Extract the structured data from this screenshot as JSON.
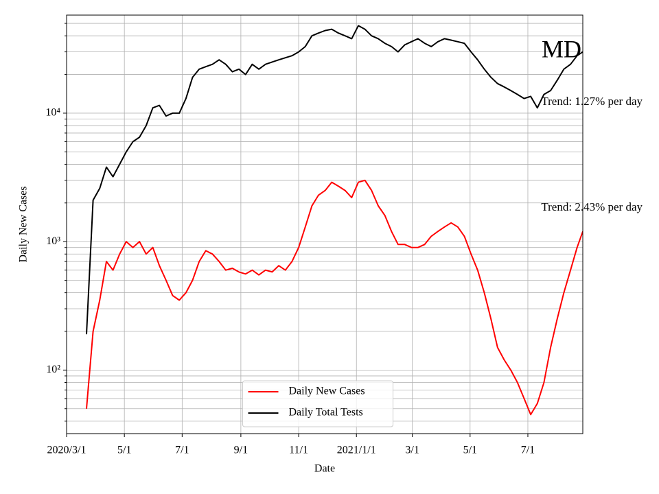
{
  "chart_data": {
    "type": "line",
    "xlabel": "Date",
    "ylabel": "Daily New Cases",
    "annotations": [
      "MD",
      "Trend: 1.27% per day",
      "Trend: 2.43% per day"
    ],
    "x": [
      "2020-03-01",
      "2020-03-08",
      "2020-03-15",
      "2020-03-22",
      "2020-03-29",
      "2020-04-05",
      "2020-04-12",
      "2020-04-19",
      "2020-04-26",
      "2020-05-03",
      "2020-05-10",
      "2020-05-17",
      "2020-05-24",
      "2020-05-31",
      "2020-06-07",
      "2020-06-14",
      "2020-06-21",
      "2020-06-28",
      "2020-07-05",
      "2020-07-12",
      "2020-07-19",
      "2020-07-26",
      "2020-08-02",
      "2020-08-09",
      "2020-08-16",
      "2020-08-23",
      "2020-08-30",
      "2020-09-06",
      "2020-09-13",
      "2020-09-20",
      "2020-09-27",
      "2020-10-04",
      "2020-10-11",
      "2020-10-18",
      "2020-10-25",
      "2020-11-01",
      "2020-11-08",
      "2020-11-15",
      "2020-11-22",
      "2020-11-29",
      "2020-12-06",
      "2020-12-13",
      "2020-12-20",
      "2020-12-27",
      "2021-01-03",
      "2021-01-10",
      "2021-01-17",
      "2021-01-24",
      "2021-01-31",
      "2021-02-07",
      "2021-02-14",
      "2021-02-21",
      "2021-02-28",
      "2021-03-07",
      "2021-03-14",
      "2021-03-21",
      "2021-03-28",
      "2021-04-04",
      "2021-04-11",
      "2021-04-18",
      "2021-04-25",
      "2021-05-02",
      "2021-05-09",
      "2021-05-16",
      "2021-05-23",
      "2021-05-30",
      "2021-06-06",
      "2021-06-13",
      "2021-06-20",
      "2021-06-27",
      "2021-07-04",
      "2021-07-11",
      "2021-07-18",
      "2021-07-25",
      "2021-08-01",
      "2021-08-08",
      "2021-08-15",
      "2021-08-22",
      "2021-08-28"
    ],
    "series": [
      {
        "name": "Daily New Cases",
        "color": "#ff0000",
        "values": [
          null,
          null,
          null,
          50,
          200,
          350,
          700,
          600,
          800,
          1000,
          900,
          1000,
          800,
          900,
          650,
          500,
          380,
          350,
          400,
          500,
          700,
          850,
          800,
          700,
          600,
          620,
          580,
          560,
          600,
          550,
          600,
          580,
          650,
          600,
          700,
          900,
          1300,
          1900,
          2300,
          2500,
          2900,
          2700,
          2500,
          2200,
          2900,
          3000,
          2500,
          1900,
          1600,
          1200,
          950,
          950,
          900,
          900,
          950,
          1100,
          1200,
          1300,
          1400,
          1300,
          1100,
          800,
          600,
          400,
          250,
          150,
          120,
          100,
          80,
          60,
          45,
          55,
          80,
          150,
          250,
          400,
          600,
          900,
          1200
        ]
      },
      {
        "name": "Daily Total Tests",
        "color": "#000000",
        "values": [
          null,
          null,
          null,
          190,
          2100,
          2600,
          3800,
          3200,
          4000,
          5000,
          6000,
          6500,
          8000,
          11000,
          11500,
          9500,
          10000,
          10000,
          13000,
          19000,
          22000,
          23000,
          24000,
          26000,
          24000,
          21000,
          22000,
          20000,
          24000,
          22000,
          24000,
          25000,
          26000,
          27000,
          28000,
          30000,
          33000,
          40000,
          42000,
          44000,
          45000,
          42000,
          40000,
          38000,
          48000,
          45000,
          40000,
          38000,
          35000,
          33000,
          30000,
          34000,
          36000,
          38000,
          35000,
          33000,
          36000,
          38000,
          37000,
          36000,
          35000,
          30000,
          26000,
          22000,
          19000,
          17000,
          16000,
          15000,
          14000,
          13000,
          13500,
          11000,
          14000,
          15000,
          18000,
          22000,
          24000,
          28000,
          30000
        ]
      }
    ],
    "xlim": [
      "2020-03-01",
      "2021-08-28"
    ],
    "xticks": [
      {
        "value": "2020-03-01",
        "label": "2020/3/1"
      },
      {
        "value": "2020-05-01",
        "label": "5/1"
      },
      {
        "value": "2020-07-01",
        "label": "7/1"
      },
      {
        "value": "2020-09-01",
        "label": "9/1"
      },
      {
        "value": "2020-11-01",
        "label": "11/1"
      },
      {
        "value": "2021-01-01",
        "label": "2021/1/1"
      },
      {
        "value": "2021-03-01",
        "label": "3/1"
      },
      {
        "value": "2021-05-01",
        "label": "5/1"
      },
      {
        "value": "2021-07-01",
        "label": "7/1"
      }
    ],
    "ylim": [
      32,
      58000
    ],
    "yscale": "log",
    "yticks": [
      {
        "value": 100,
        "label": "10²"
      },
      {
        "value": 1000,
        "label": "10³"
      },
      {
        "value": 10000,
        "label": "10⁴"
      }
    ],
    "yminorticks": [
      40,
      50,
      60,
      70,
      80,
      90,
      200,
      300,
      400,
      500,
      600,
      700,
      800,
      900,
      2000,
      3000,
      4000,
      5000,
      6000,
      7000,
      8000,
      9000,
      20000,
      30000,
      40000,
      50000
    ],
    "grid": true,
    "legend": "lower center"
  }
}
